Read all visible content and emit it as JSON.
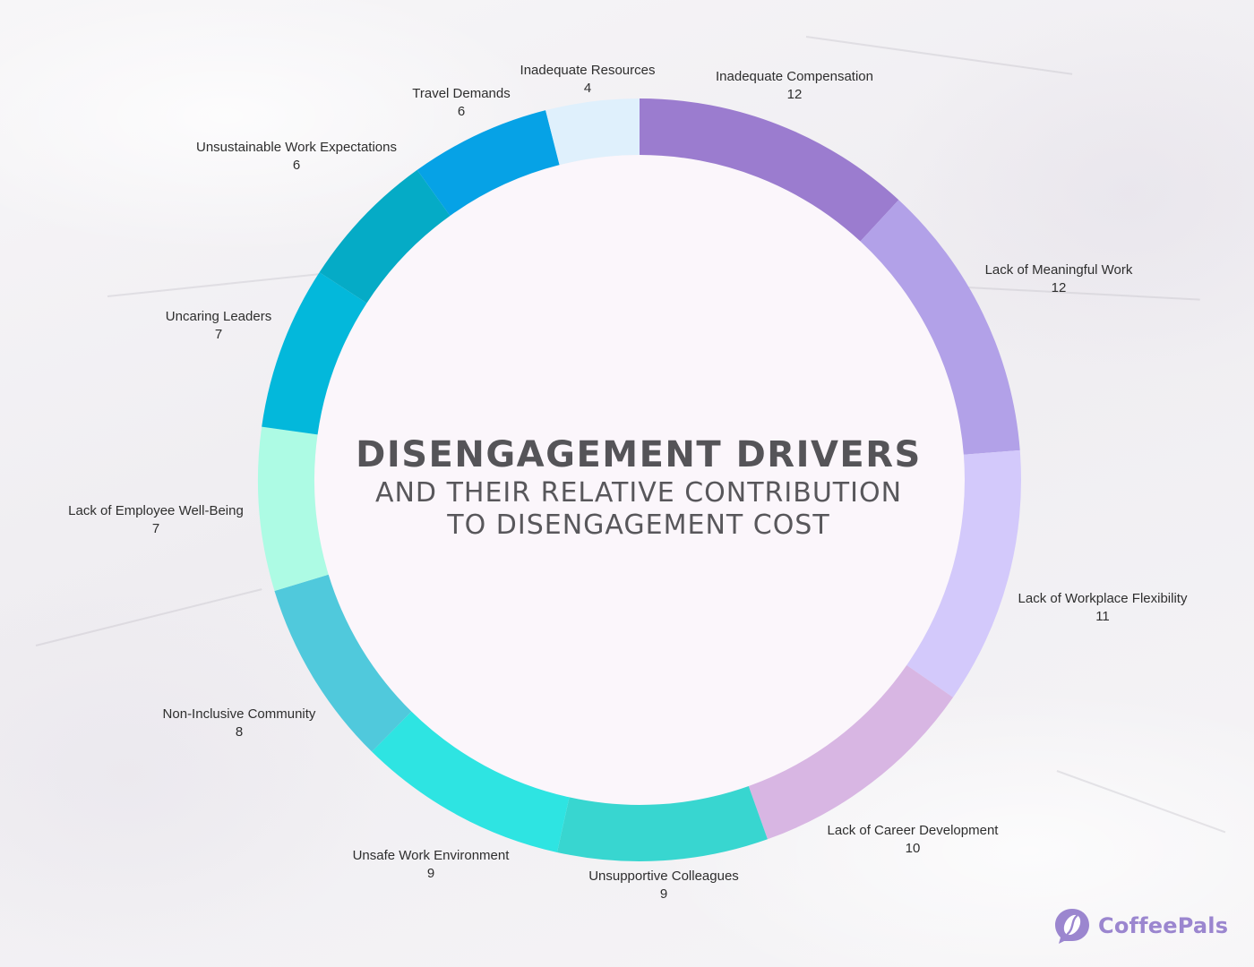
{
  "title": "DISENGAGEMENT DRIVERS",
  "subtitle_line1": "AND THEIR RELATIVE CONTRIBUTION",
  "subtitle_line2": "TO DISENGAGEMENT COST",
  "brand": {
    "name": "CoffeePals",
    "color": "#9b86cf"
  },
  "chart_data": {
    "type": "pie",
    "variant": "donut",
    "title": "DISENGAGEMENT DRIVERS",
    "subtitle": "AND THEIR RELATIVE CONTRIBUTION TO DISENGAGEMENT COST",
    "start": "top",
    "direction": "clockwise",
    "slices": [
      {
        "label": "Inadequate Compensation",
        "value": 12,
        "color": "#9b7ccf"
      },
      {
        "label": "Lack of Meaningful Work",
        "value": 12,
        "color": "#b2a1e8"
      },
      {
        "label": "Lack of Workplace Flexibility",
        "value": 11,
        "color": "#d3c9fb"
      },
      {
        "label": "Lack of Career Development",
        "value": 10,
        "color": "#d8b6e3"
      },
      {
        "label": "Unsupportive Colleagues",
        "value": 9,
        "color": "#38d6d0"
      },
      {
        "label": "Unsafe Work Environment",
        "value": 9,
        "color": "#2ee4e2"
      },
      {
        "label": "Non-Inclusive Community",
        "value": 8,
        "color": "#50c9dc"
      },
      {
        "label": "Lack of Employee Well-Being",
        "value": 7,
        "color": "#adfbe4"
      },
      {
        "label": "Uncaring Leaders",
        "value": 7,
        "color": "#03b8db"
      },
      {
        "label": "Unsustainable Work Expectations",
        "value": 6,
        "color": "#05abc6"
      },
      {
        "label": "Travel Demands",
        "value": 6,
        "color": "#06a2e6"
      },
      {
        "label": "Inadequate Resources",
        "value": 4,
        "color": "#dff0fc"
      }
    ]
  }
}
